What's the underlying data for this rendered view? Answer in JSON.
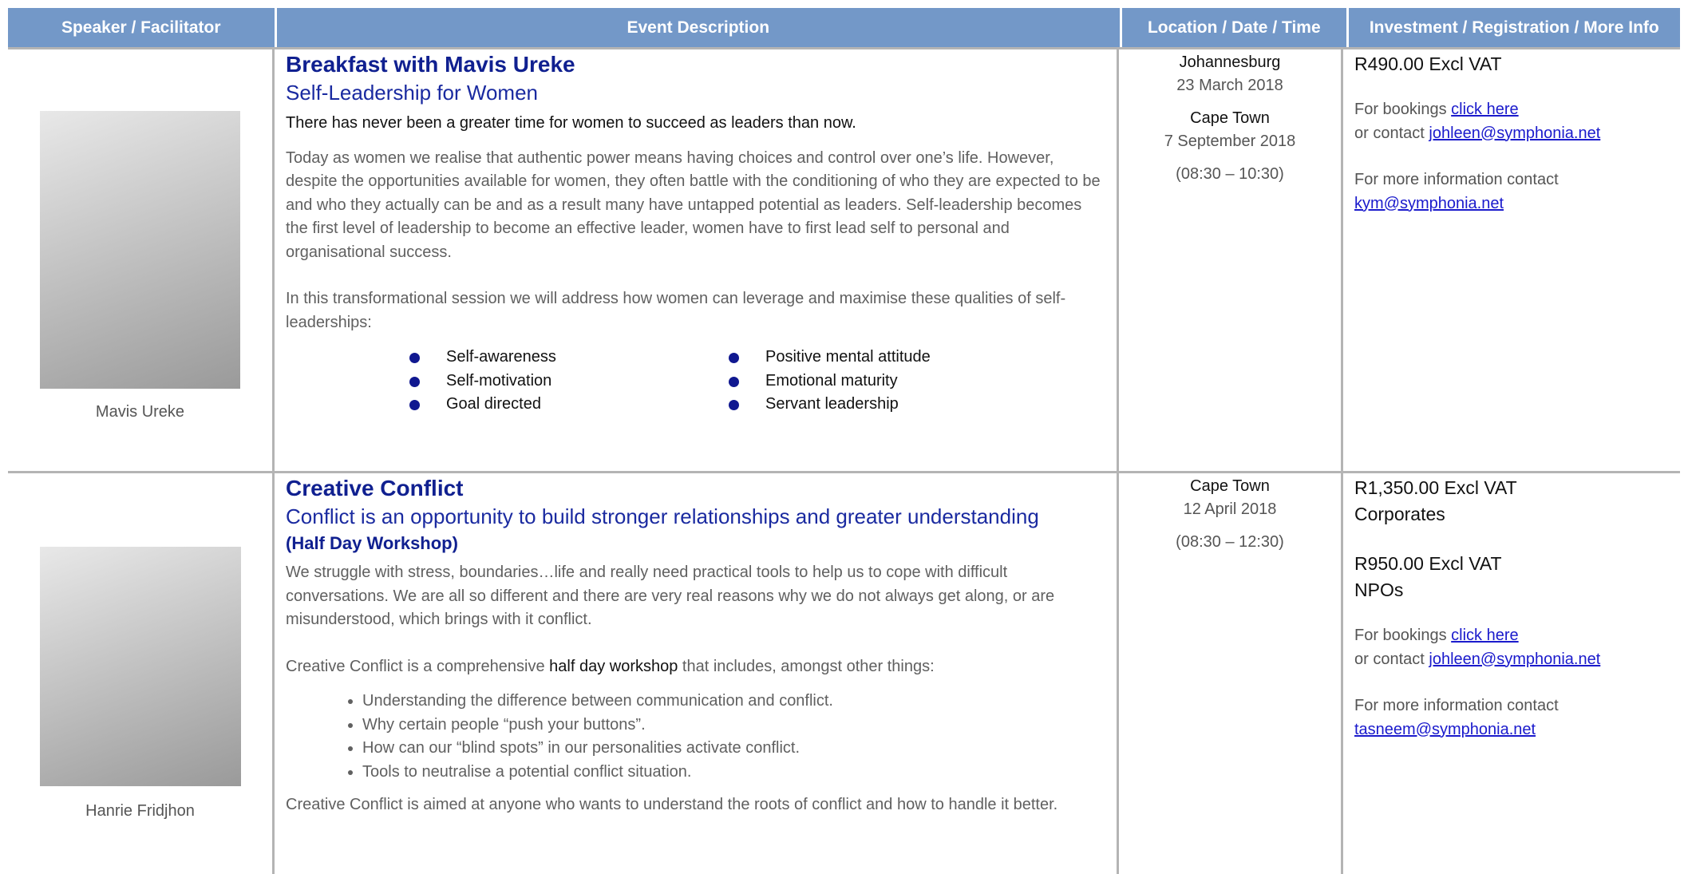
{
  "header": {
    "columns": [
      "Speaker / Facilitator",
      "Event Description",
      "Location / Date / Time",
      "Investment / Registration / More Info"
    ]
  },
  "rows": [
    {
      "speaker": "Mavis Ureke",
      "event": {
        "title": "Breakfast with Mavis Ureke",
        "subtitle": "Self-Leadership for Women",
        "lead": "There has never been a greater time for women to succeed as leaders than now.",
        "paragraphs": [
          "Today as women we realise that authentic power means having choices and control over one’s life. However, despite the opportunities available for women, they often battle with the conditioning of who they are expected to be and who they actually can be and as a result many have untapped potential as leaders. Self-leadership becomes the first level of leadership to become an effective leader, women have to first lead self to personal and organisational success.",
          "In this transformational session we will address how women can leverage and maximise  these qualities of self-leaderships:"
        ],
        "bullets": [
          [
            "Self-awareness",
            "Self-motivation",
            "Goal directed"
          ],
          [
            "Positive mental attitude",
            "Emotional maturity",
            "Servant leadership"
          ]
        ]
      },
      "location": [
        {
          "city": "Johannesburg",
          "date": "23 March 2018"
        },
        {
          "city": "Cape Town",
          "date": "7 September 2018"
        }
      ],
      "time": "(08:30 – 10:30)",
      "info": {
        "prices": [
          {
            "price": "R490.00 Excl VAT"
          }
        ],
        "bookings": "For bookings ",
        "link": "click here",
        "contact": "or contact ",
        "email": "johleen@symphonia.net",
        "more": "For more information contact",
        "more_email": "kym@symphonia.net"
      }
    },
    {
      "speaker": "Hanrie Fridjhon",
      "event": {
        "title": "Creative Conflict",
        "subtitle": "Conflict is an opportunity to build stronger relationships and greater understanding",
        "note": "(Half Day Workshop)",
        "paragraph1": "We struggle with stress, boundaries…life and really need practical tools to help us to cope with difficult conversations.  We are all so different and there are very real reasons why we do not always get along, or are misunderstood, which brings with it conflict.",
        "paragraph2": {
          "before": "Creative Conflict is a comprehensive ",
          "bold": "half day workshop",
          "after": " that includes, amongst other things:"
        },
        "bullets": [
          "Understanding the difference between communication and conflict.",
          "Why certain people “push your buttons”.",
          "How can our “blind spots” in our personalities activate conflict.",
          "Tools to neutralise a potential conflict situation."
        ],
        "closing": "Creative Conflict is aimed at anyone who wants to understand the roots of conflict and how to handle it better."
      },
      "location": [
        {
          "city": "Cape Town",
          "date": "12 April 2018"
        }
      ],
      "time": "(08:30 – 12:30)",
      "info": {
        "prices": [
          {
            "price": "R1,350.00 Excl VAT",
            "label": "Corporates"
          },
          {
            "price": "R950.00 Excl VAT",
            "label": "NPOs"
          }
        ],
        "bookings": "For bookings ",
        "link": "click here",
        "contact": "or contact ",
        "email": "johleen@symphonia.net",
        "more": "For more information contact",
        "more_email": "tasneem@symphonia.net"
      }
    }
  ]
}
